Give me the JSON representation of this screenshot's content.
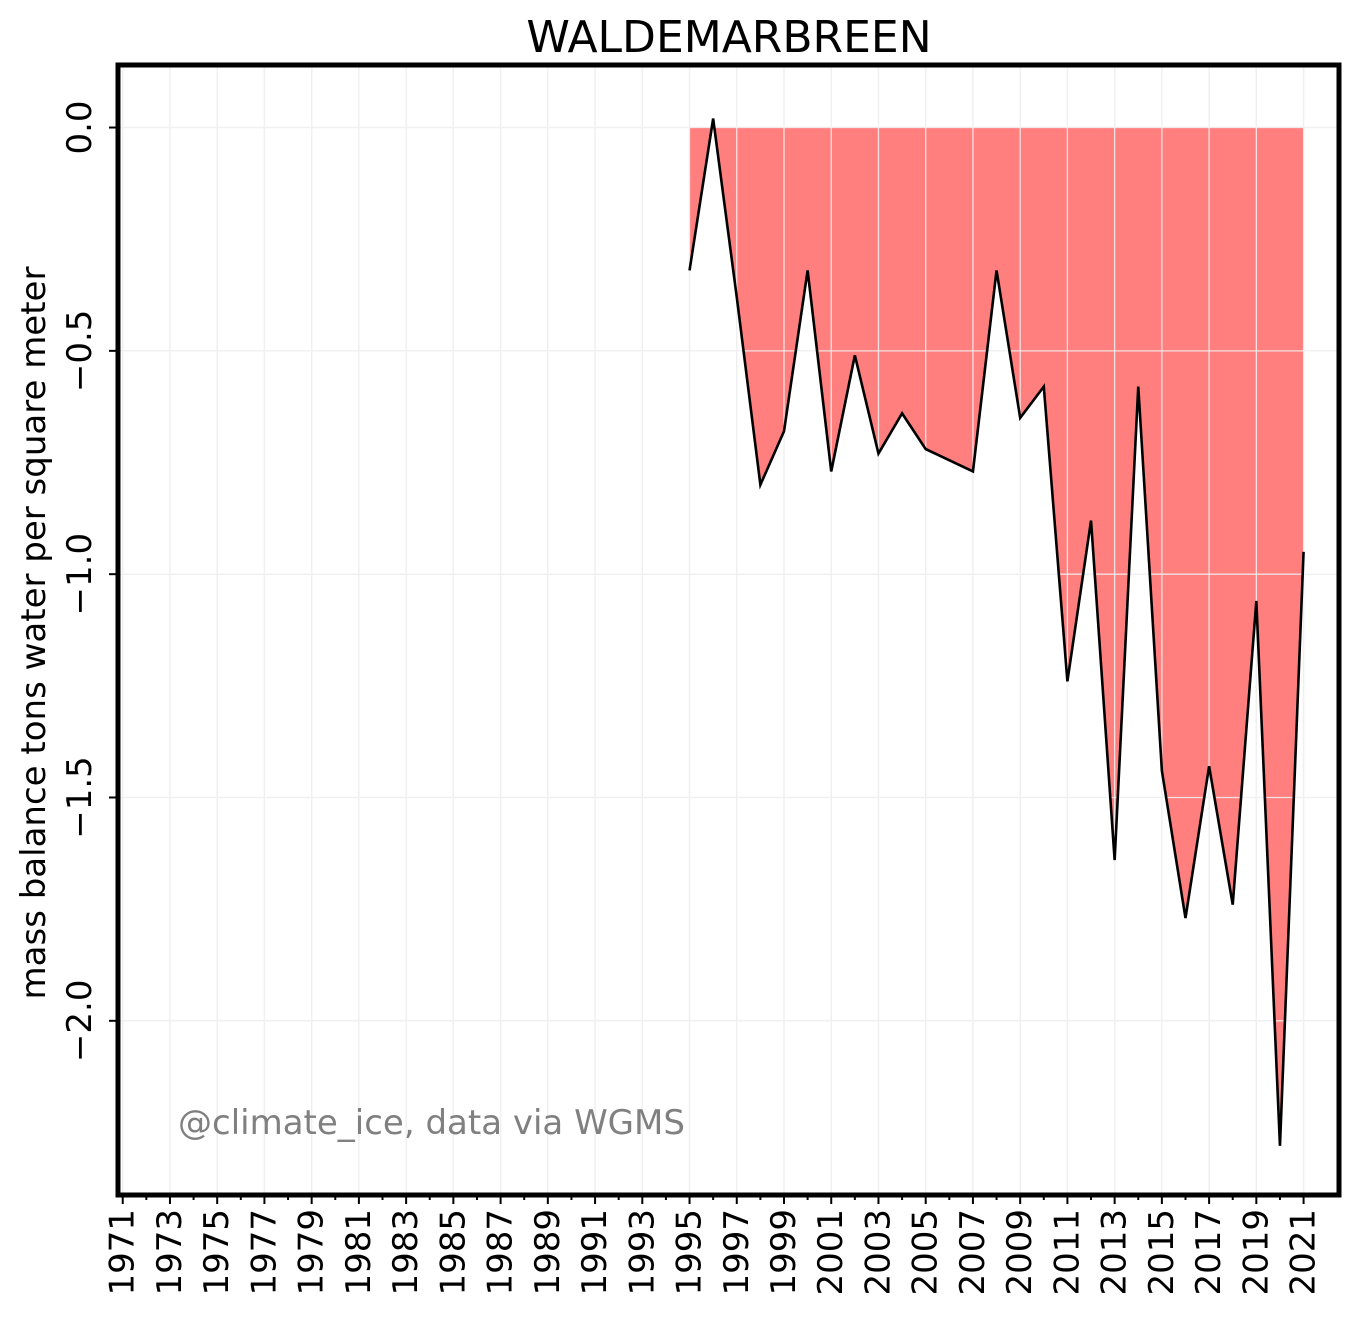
{
  "chart_data": {
    "type": "area",
    "title": "WALDEMARBREEN",
    "xlabel": "",
    "ylabel": "mass balance tons water per square meter",
    "annotation": "@climate_ice, data via WGMS",
    "xlim": [
      1970.8,
      2022.5
    ],
    "ylim": [
      -2.39,
      0.14
    ],
    "x_ticks": [
      1971,
      1973,
      1975,
      1977,
      1979,
      1981,
      1983,
      1985,
      1987,
      1989,
      1991,
      1993,
      1995,
      1997,
      1999,
      2001,
      2003,
      2005,
      2007,
      2009,
      2011,
      2013,
      2015,
      2017,
      2019,
      2021
    ],
    "y_ticks": [
      0.0,
      -0.5,
      -1.0,
      -1.5,
      -2.0
    ],
    "y_tick_labels": [
      "0.0",
      "−0.5",
      "−1.0",
      "−1.5",
      "−2.0"
    ],
    "grid": true,
    "fill_color": "#ff7f7f",
    "line_color": "#000000",
    "series": [
      {
        "x": [
          1995,
          1996,
          1997,
          1998,
          1999,
          2000,
          2001,
          2002,
          2003,
          2004,
          2005,
          2007,
          2008,
          2009,
          2010,
          2011,
          2012,
          2013,
          2014,
          2015,
          2016,
          2017,
          2018,
          2019,
          2020,
          2021
        ],
        "values": [
          -0.32,
          0.02,
          -0.38,
          -0.8,
          -0.68,
          -0.32,
          -0.77,
          -0.51,
          -0.73,
          -0.64,
          -0.72,
          -0.77,
          -0.32,
          -0.65,
          -0.58,
          -1.24,
          -0.88,
          -1.64,
          -0.58,
          -1.44,
          -1.77,
          -1.43,
          -1.74,
          -1.06,
          -2.28,
          -0.95
        ]
      }
    ]
  }
}
